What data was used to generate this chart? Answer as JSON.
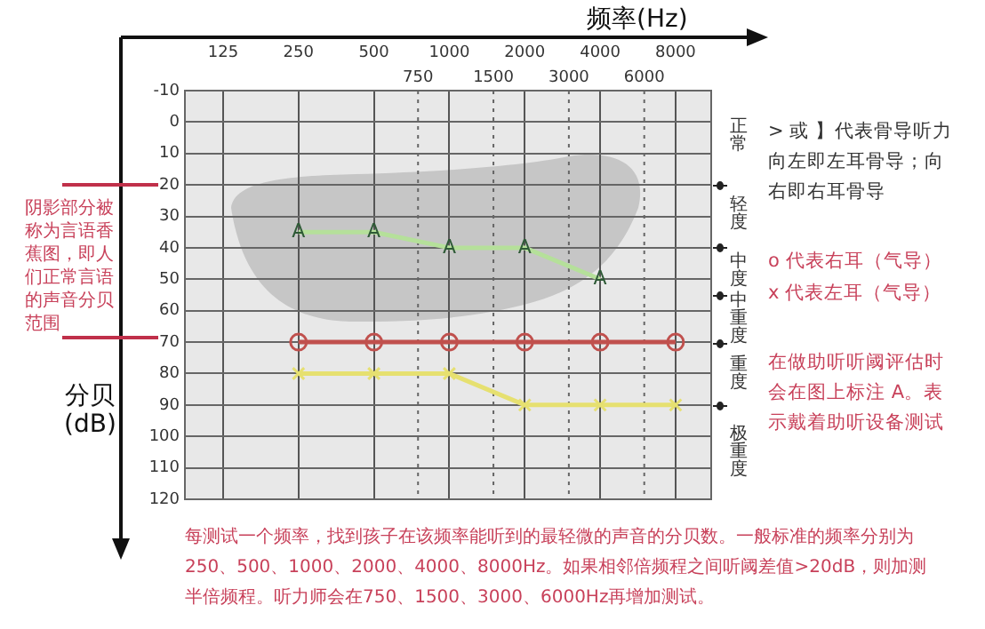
{
  "chart_data": {
    "type": "line",
    "xlabel": "频率(Hz)",
    "ylabel": "分贝(dB)",
    "log": "x",
    "grid": true,
    "xlim": [
      88,
      11100
    ],
    "xticks": [
      125,
      250,
      500,
      1000,
      2000,
      4000,
      8000
    ],
    "ref_lines": [
      {
        "axis": "x",
        "value": 750,
        "label": "750",
        "line_style": "dotted"
      },
      {
        "axis": "x",
        "value": 1500,
        "label": "1500",
        "line_style": "dotted"
      },
      {
        "axis": "x",
        "value": 3000,
        "label": "3000",
        "line_style": "dotted"
      },
      {
        "axis": "x",
        "value": 6000,
        "label": "6000",
        "line_style": "dotted"
      }
    ],
    "ylim": [
      120,
      -10
    ],
    "yticks": [
      -10,
      0,
      10,
      20,
      30,
      40,
      50,
      60,
      70,
      80,
      90,
      100,
      110,
      120
    ],
    "series": [
      {
        "color": "#b5e09a",
        "x": [
          250,
          500,
          1000,
          2000,
          4000
        ],
        "values": [
          35,
          35,
          40,
          40,
          50
        ]
      },
      {
        "color": "#c0504d",
        "marker": "circle",
        "x": [
          250,
          500,
          1000,
          2000,
          4000,
          8000
        ],
        "values": [
          70,
          70,
          70,
          70,
          70,
          70
        ]
      },
      {
        "color": "#e6e070",
        "marker": "cross",
        "x": [
          250,
          500,
          1000,
          2000,
          4000,
          8000
        ],
        "values": [
          80,
          80,
          80,
          90,
          90,
          90
        ]
      }
    ],
    "annotations": [
      "阴影部分被称为言语香蕉图，即人们正常言语的声音分贝范围",
      "> 或 】代表骨导听力向左即左耳骨导；向右即右耳骨导",
      "o 代表右耳（气导）",
      "x 代表左耳（气导）",
      "在做助听听阈评估时会在图上标注 A。表示戴着助听设备测试",
      "每测试一个频率，找到孩子在该频率能听到的最轻微的声音的分贝数。一般标准的频率分别为250、500、1000、2000、4000、8000Hz。如果相邻倍频程之间听阈差值>20dB，则加测半倍频程。听力师会在750、1500、3000、6000Hz再增加测试。",
      "正常",
      "轻度",
      "中度",
      "中重度",
      "重度",
      "极重度",
      {
        "text": "A",
        "x": 250,
        "y": 35
      },
      {
        "text": "A",
        "x": 500,
        "y": 35
      },
      {
        "text": "A",
        "x": 1000,
        "y": 40
      },
      {
        "text": "A",
        "x": 2000,
        "y": 40
      },
      {
        "text": "A",
        "x": 4000,
        "y": 50
      }
    ]
  }
}
